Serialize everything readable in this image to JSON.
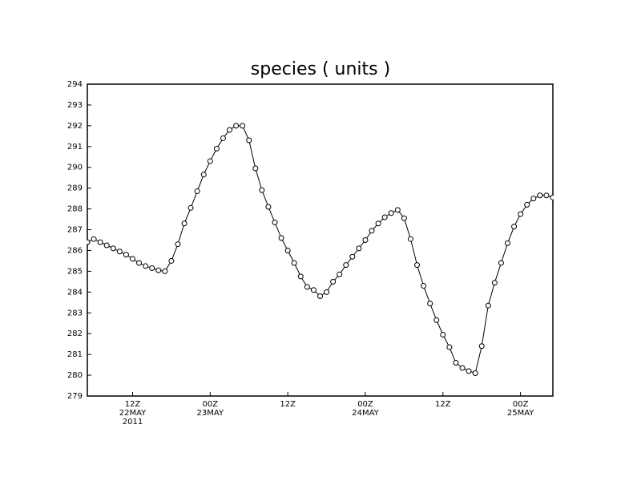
{
  "chart_data": {
    "type": "line",
    "title": "species ( units )",
    "x": [
      5,
      6,
      7,
      8,
      9,
      10,
      11,
      12,
      13,
      14,
      15,
      16,
      17,
      18,
      19,
      20,
      21,
      22,
      23,
      24,
      25,
      26,
      27,
      28,
      29,
      30,
      31,
      32,
      33,
      34,
      35,
      36,
      37,
      38,
      39,
      40,
      41,
      42,
      43,
      44,
      45,
      46,
      47,
      48,
      49,
      50,
      51,
      52,
      53,
      54,
      55,
      56,
      57,
      58,
      59,
      60,
      61,
      62,
      63,
      64,
      65,
      66,
      67,
      68,
      69,
      70,
      71,
      72,
      73,
      74,
      75,
      76,
      77
    ],
    "series": [
      {
        "color": "#000000",
        "marker": "circle",
        "values": [
          286.4,
          286.55,
          286.4,
          286.25,
          286.1,
          285.95,
          285.8,
          285.6,
          285.4,
          285.25,
          285.15,
          285.05,
          285.0,
          285.5,
          286.3,
          287.3,
          288.05,
          288.85,
          289.65,
          290.3,
          290.9,
          291.4,
          291.8,
          292.0,
          292.0,
          291.3,
          289.95,
          288.9,
          288.1,
          287.35,
          286.6,
          286.0,
          285.4,
          284.75,
          284.25,
          284.1,
          283.8,
          284.0,
          284.5,
          284.85,
          285.3,
          285.7,
          286.1,
          286.5,
          286.95,
          287.3,
          287.6,
          287.8,
          287.95,
          287.55,
          286.55,
          285.3,
          284.3,
          283.45,
          282.65,
          281.95,
          281.35,
          280.6,
          280.35,
          280.2,
          280.1,
          281.4,
          283.35,
          284.45,
          285.4,
          286.35,
          287.15,
          287.75,
          288.2,
          288.5,
          288.65,
          288.65,
          288.55
        ]
      }
    ],
    "xlim": [
      5,
      77
    ],
    "xticks": [
      {
        "value": 12,
        "label": "12Z",
        "date": "22MAY",
        "year": "2011"
      },
      {
        "value": 24,
        "label": "00Z",
        "date": "23MAY"
      },
      {
        "value": 36,
        "label": "12Z"
      },
      {
        "value": 48,
        "label": "00Z",
        "date": "24MAY"
      },
      {
        "value": 60,
        "label": "12Z"
      },
      {
        "value": 72,
        "label": "00Z",
        "date": "25MAY"
      }
    ],
    "ylim": [
      279,
      294
    ],
    "yticks": [
      279,
      280,
      281,
      282,
      283,
      284,
      285,
      286,
      287,
      288,
      289,
      290,
      291,
      292,
      293,
      294
    ]
  }
}
